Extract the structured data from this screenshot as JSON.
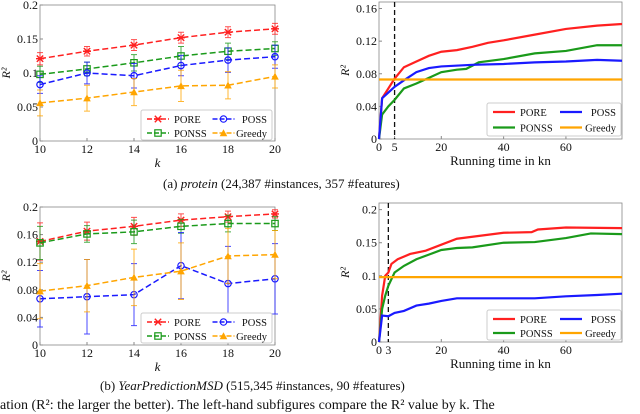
{
  "captions": {
    "a": {
      "label": "(a)",
      "dataset": "protein",
      "details": "(24,387 #instances, 357 #features)"
    },
    "b": {
      "label": "(b)",
      "dataset": "YearPredictionMSD",
      "details": "(515,345 #instances, 90 #features)"
    },
    "body_fragment": "ation (R²: the larger the better). The left-hand subfigures compare the R² value by k. The"
  },
  "colors": {
    "PORE": "#ff2020",
    "PONSS": "#1a9a1a",
    "POSS": "#1a1aff",
    "Greedy": "#ffa500"
  },
  "chart_data": [
    {
      "id": "a-left",
      "type": "line",
      "xlabel": "k",
      "ylabel": "R²",
      "xlim": [
        10,
        20
      ],
      "ylim": [
        0,
        0.2
      ],
      "xticks": [
        10,
        12,
        14,
        16,
        18,
        20
      ],
      "yticks": [
        0,
        0.05,
        0.1,
        0.15,
        0.2
      ],
      "ytick_labels": [
        "0",
        "0.05",
        "0.1",
        "0.15",
        "0.2"
      ],
      "legend": "bottom-right",
      "error_bars": true,
      "dashed": true,
      "x": [
        10,
        12,
        14,
        16,
        18,
        20
      ],
      "series": [
        {
          "name": "PORE",
          "marker": "x",
          "values": [
            0.121,
            0.132,
            0.141,
            0.152,
            0.16,
            0.165
          ],
          "err": [
            0.009,
            0.007,
            0.008,
            0.008,
            0.008,
            0.008
          ]
        },
        {
          "name": "PONSS",
          "marker": "square",
          "values": [
            0.098,
            0.106,
            0.115,
            0.125,
            0.132,
            0.136
          ],
          "err": [
            0.012,
            0.01,
            0.012,
            0.014,
            0.012,
            0.01
          ]
        },
        {
          "name": "POSS",
          "marker": "circle",
          "values": [
            0.083,
            0.1,
            0.096,
            0.111,
            0.119,
            0.124
          ],
          "err": [
            0.013,
            0.016,
            0.018,
            0.015,
            0.018,
            0.017
          ]
        },
        {
          "name": "Greedy",
          "marker": "triangle",
          "values": [
            0.056,
            0.063,
            0.072,
            0.081,
            0.082,
            0.095
          ],
          "err": [
            0.019,
            0.019,
            0.02,
            0.023,
            0.02,
            0.017
          ]
        }
      ]
    },
    {
      "id": "a-right",
      "type": "line",
      "xlabel": "Running time in kn",
      "ylabel": "R²",
      "xlim": [
        0,
        78
      ],
      "ylim": [
        0,
        0.168
      ],
      "xticks": [
        0,
        5,
        20,
        40,
        60
      ],
      "yticks": [
        0,
        0.04,
        0.08,
        0.12,
        0.16
      ],
      "ytick_labels": [
        "0",
        "0.04",
        "0.08",
        "0.12",
        "0.16"
      ],
      "legend": "bottom-right",
      "vline": 5,
      "series": [
        {
          "name": "PORE",
          "points": [
            [
              0,
              0
            ],
            [
              1,
              0.05
            ],
            [
              3,
              0.062
            ],
            [
              5,
              0.074
            ],
            [
              8,
              0.088
            ],
            [
              12,
              0.095
            ],
            [
              16,
              0.102
            ],
            [
              20,
              0.107
            ],
            [
              25,
              0.109
            ],
            [
              30,
              0.113
            ],
            [
              35,
              0.118
            ],
            [
              40,
              0.121
            ],
            [
              50,
              0.128
            ],
            [
              60,
              0.135
            ],
            [
              70,
              0.139
            ],
            [
              78,
              0.141
            ]
          ]
        },
        {
          "name": "PONSS",
          "points": [
            [
              0,
              0
            ],
            [
              1,
              0.03
            ],
            [
              3,
              0.04
            ],
            [
              5,
              0.048
            ],
            [
              8,
              0.062
            ],
            [
              12,
              0.068
            ],
            [
              16,
              0.075
            ],
            [
              20,
              0.082
            ],
            [
              25,
              0.085
            ],
            [
              28,
              0.086
            ],
            [
              32,
              0.094
            ],
            [
              40,
              0.098
            ],
            [
              50,
              0.105
            ],
            [
              60,
              0.108
            ],
            [
              70,
              0.115
            ],
            [
              78,
              0.115
            ]
          ]
        },
        {
          "name": "POSS",
          "points": [
            [
              0,
              0
            ],
            [
              1,
              0.05
            ],
            [
              3,
              0.057
            ],
            [
              5,
              0.064
            ],
            [
              8,
              0.072
            ],
            [
              12,
              0.082
            ],
            [
              16,
              0.087
            ],
            [
              20,
              0.089
            ],
            [
              30,
              0.091
            ],
            [
              40,
              0.092
            ],
            [
              50,
              0.094
            ],
            [
              60,
              0.095
            ],
            [
              70,
              0.097
            ],
            [
              78,
              0.096
            ]
          ]
        },
        {
          "name": "Greedy",
          "points": [
            [
              0,
              0.073
            ],
            [
              78,
              0.073
            ]
          ]
        }
      ]
    },
    {
      "id": "b-left",
      "type": "line",
      "xlabel": "k",
      "ylabel": "R²",
      "xlim": [
        10,
        20
      ],
      "ylim": [
        0,
        0.2
      ],
      "xticks": [
        10,
        12,
        14,
        16,
        18,
        20
      ],
      "yticks": [
        0,
        0.04,
        0.08,
        0.12,
        0.16,
        0.2
      ],
      "ytick_labels": [
        "0",
        "0.04",
        "0.08",
        "0.12",
        "0.16",
        "0.2"
      ],
      "legend": "bottom-right",
      "error_bars": true,
      "dashed": true,
      "x": [
        10,
        12,
        14,
        16,
        18,
        20
      ],
      "series": [
        {
          "name": "PORE",
          "marker": "x",
          "values": [
            0.15,
            0.165,
            0.172,
            0.181,
            0.186,
            0.19
          ],
          "err": [
            0.027,
            0.013,
            0.013,
            0.009,
            0.008,
            0.006
          ]
        },
        {
          "name": "PONSS",
          "marker": "square",
          "values": [
            0.148,
            0.161,
            0.164,
            0.172,
            0.176,
            0.176
          ],
          "err": [
            0.024,
            0.012,
            0.017,
            0.01,
            0.012,
            0.01
          ]
        },
        {
          "name": "POSS",
          "marker": "circle",
          "values": [
            0.067,
            0.07,
            0.073,
            0.115,
            0.089,
            0.096
          ],
          "err": [
            0.041,
            0.054,
            0.045,
            0.048,
            0.054,
            0.051
          ]
        },
        {
          "name": "Greedy",
          "marker": "triangle",
          "values": [
            0.078,
            0.086,
            0.098,
            0.107,
            0.129,
            0.131
          ],
          "err": [
            0.04,
            0.038,
            0.041,
            0.041,
            0.04,
            0.035
          ]
        }
      ]
    },
    {
      "id": "b-right",
      "type": "line",
      "xlabel": "Running time in kn",
      "ylabel": "R²",
      "xlim": [
        0,
        78
      ],
      "ylim": [
        0,
        0.21
      ],
      "xticks": [
        0,
        3,
        20,
        40,
        60
      ],
      "yticks": [
        0,
        0.05,
        0.1,
        0.15,
        0.2
      ],
      "ytick_labels": [
        "0",
        "0.05",
        "0.1",
        "0.15",
        "0.2"
      ],
      "legend": "bottom-right",
      "vline": 3,
      "series": [
        {
          "name": "PORE",
          "points": [
            [
              0,
              0
            ],
            [
              1,
              0.07
            ],
            [
              2,
              0.1
            ],
            [
              3,
              0.105
            ],
            [
              4,
              0.118
            ],
            [
              6,
              0.125
            ],
            [
              10,
              0.133
            ],
            [
              15,
              0.138
            ],
            [
              20,
              0.147
            ],
            [
              25,
              0.156
            ],
            [
              30,
              0.159
            ],
            [
              40,
              0.165
            ],
            [
              49,
              0.166
            ],
            [
              51,
              0.17
            ],
            [
              60,
              0.173
            ],
            [
              78,
              0.172
            ]
          ]
        },
        {
          "name": "PONSS",
          "points": [
            [
              0,
              0
            ],
            [
              1,
              0.05
            ],
            [
              2,
              0.07
            ],
            [
              3,
              0.085
            ],
            [
              5,
              0.105
            ],
            [
              8,
              0.115
            ],
            [
              12,
              0.125
            ],
            [
              16,
              0.132
            ],
            [
              20,
              0.139
            ],
            [
              25,
              0.142
            ],
            [
              30,
              0.143
            ],
            [
              40,
              0.15
            ],
            [
              50,
              0.151
            ],
            [
              60,
              0.157
            ],
            [
              68,
              0.164
            ],
            [
              78,
              0.163
            ]
          ]
        },
        {
          "name": "POSS",
          "points": [
            [
              0,
              0
            ],
            [
              1,
              0.04
            ],
            [
              3,
              0.039
            ],
            [
              5,
              0.044
            ],
            [
              8,
              0.047
            ],
            [
              12,
              0.055
            ],
            [
              16,
              0.058
            ],
            [
              20,
              0.062
            ],
            [
              25,
              0.066
            ],
            [
              35,
              0.066
            ],
            [
              50,
              0.066
            ],
            [
              60,
              0.069
            ],
            [
              70,
              0.071
            ],
            [
              78,
              0.073
            ]
          ]
        },
        {
          "name": "Greedy",
          "points": [
            [
              0,
              0.098
            ],
            [
              78,
              0.098
            ]
          ]
        }
      ]
    }
  ]
}
